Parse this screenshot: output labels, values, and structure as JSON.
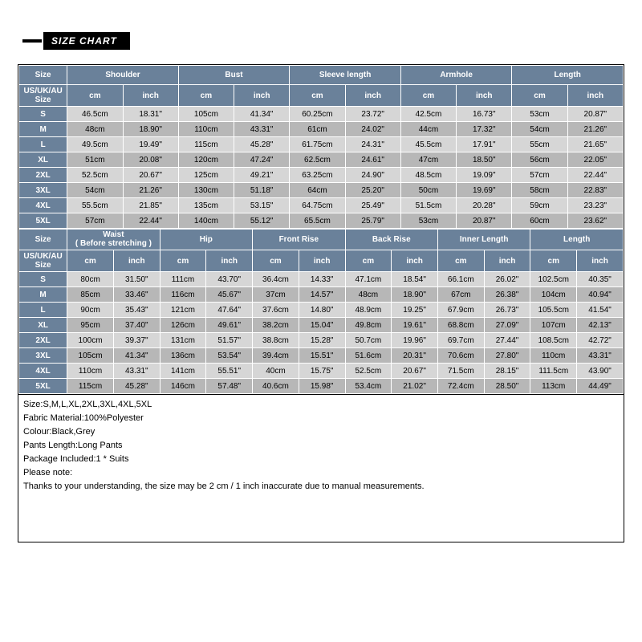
{
  "title": "SIZE CHART",
  "colors": {
    "header_bg": "#6a819a",
    "row_light": "#d6d6d6",
    "row_dark": "#b7b7b7",
    "border": "#ffffff",
    "outer_border": "#000000"
  },
  "table1": {
    "top": [
      "Size",
      "Shoulder",
      "Bust",
      "Sleeve length",
      "Armhole",
      "Length"
    ],
    "sub_label_html": "US/UK/AU<br>Size",
    "units": [
      "cm",
      "inch",
      "cm",
      "inch",
      "cm",
      "inch",
      "cm",
      "inch",
      "cm",
      "inch"
    ],
    "rows": [
      {
        "size": "S",
        "cells": [
          "46.5cm",
          "18.31\"",
          "105cm",
          "41.34\"",
          "60.25cm",
          "23.72\"",
          "42.5cm",
          "16.73\"",
          "53cm",
          "20.87\""
        ]
      },
      {
        "size": "M",
        "cells": [
          "48cm",
          "18.90\"",
          "110cm",
          "43.31\"",
          "61cm",
          "24.02\"",
          "44cm",
          "17.32\"",
          "54cm",
          "21.26\""
        ]
      },
      {
        "size": "L",
        "cells": [
          "49.5cm",
          "19.49\"",
          "115cm",
          "45.28\"",
          "61.75cm",
          "24.31\"",
          "45.5cm",
          "17.91\"",
          "55cm",
          "21.65\""
        ]
      },
      {
        "size": "XL",
        "cells": [
          "51cm",
          "20.08\"",
          "120cm",
          "47.24\"",
          "62.5cm",
          "24.61\"",
          "47cm",
          "18.50\"",
          "56cm",
          "22.05\""
        ]
      },
      {
        "size": "2XL",
        "cells": [
          "52.5cm",
          "20.67\"",
          "125cm",
          "49.21\"",
          "63.25cm",
          "24.90\"",
          "48.5cm",
          "19.09\"",
          "57cm",
          "22.44\""
        ]
      },
      {
        "size": "3XL",
        "cells": [
          "54cm",
          "21.26\"",
          "130cm",
          "51.18\"",
          "64cm",
          "25.20\"",
          "50cm",
          "19.69\"",
          "58cm",
          "22.83\""
        ]
      },
      {
        "size": "4XL",
        "cells": [
          "55.5cm",
          "21.85\"",
          "135cm",
          "53.15\"",
          "64.75cm",
          "25.49\"",
          "51.5cm",
          "20.28\"",
          "59cm",
          "23.23\""
        ]
      },
      {
        "size": "5XL",
        "cells": [
          "57cm",
          "22.44\"",
          "140cm",
          "55.12\"",
          "65.5cm",
          "25.79\"",
          "53cm",
          "20.87\"",
          "60cm",
          "23.62\""
        ]
      }
    ]
  },
  "table2": {
    "top": [
      "Size",
      "Waist\n( Before stretching )",
      "Hip",
      "Front Rise",
      "Back Rise",
      "Inner Length",
      "Length"
    ],
    "top_html": [
      "Size",
      "Waist<br>( Before stretching )",
      "Hip",
      "Front Rise",
      "Back Rise",
      "Inner Length",
      "Length"
    ],
    "sub_label_html": "US/UK/AU<br>Size",
    "units": [
      "cm",
      "inch",
      "cm",
      "inch",
      "cm",
      "inch",
      "cm",
      "inch",
      "cm",
      "inch",
      "cm",
      "inch"
    ],
    "rows": [
      {
        "size": "S",
        "cells": [
          "80cm",
          "31.50\"",
          "111cm",
          "43.70\"",
          "36.4cm",
          "14.33\"",
          "47.1cm",
          "18.54\"",
          "66.1cm",
          "26.02\"",
          "102.5cm",
          "40.35\""
        ]
      },
      {
        "size": "M",
        "cells": [
          "85cm",
          "33.46\"",
          "116cm",
          "45.67\"",
          "37cm",
          "14.57\"",
          "48cm",
          "18.90\"",
          "67cm",
          "26.38\"",
          "104cm",
          "40.94\""
        ]
      },
      {
        "size": "L",
        "cells": [
          "90cm",
          "35.43\"",
          "121cm",
          "47.64\"",
          "37.6cm",
          "14.80\"",
          "48.9cm",
          "19.25\"",
          "67.9cm",
          "26.73\"",
          "105.5cm",
          "41.54\""
        ]
      },
      {
        "size": "XL",
        "cells": [
          "95cm",
          "37.40\"",
          "126cm",
          "49.61\"",
          "38.2cm",
          "15.04\"",
          "49.8cm",
          "19.61\"",
          "68.8cm",
          "27.09\"",
          "107cm",
          "42.13\""
        ]
      },
      {
        "size": "2XL",
        "cells": [
          "100cm",
          "39.37\"",
          "131cm",
          "51.57\"",
          "38.8cm",
          "15.28\"",
          "50.7cm",
          "19.96\"",
          "69.7cm",
          "27.44\"",
          "108.5cm",
          "42.72\""
        ]
      },
      {
        "size": "3XL",
        "cells": [
          "105cm",
          "41.34\"",
          "136cm",
          "53.54\"",
          "39.4cm",
          "15.51\"",
          "51.6cm",
          "20.31\"",
          "70.6cm",
          "27.80\"",
          "110cm",
          "43.31\""
        ]
      },
      {
        "size": "4XL",
        "cells": [
          "110cm",
          "43.31\"",
          "141cm",
          "55.51\"",
          "40cm",
          "15.75\"",
          "52.5cm",
          "20.67\"",
          "71.5cm",
          "28.15\"",
          "111.5cm",
          "43.90\""
        ]
      },
      {
        "size": "5XL",
        "cells": [
          "115cm",
          "45.28\"",
          "146cm",
          "57.48\"",
          "40.6cm",
          "15.98\"",
          "53.4cm",
          "21.02\"",
          "72.4cm",
          "28.50\"",
          "113cm",
          "44.49\""
        ]
      }
    ]
  },
  "notes": [
    "Size:S,M,L,XL,2XL,3XL,4XL,5XL",
    "Fabric Material:100%Polyester",
    "Colour:Black,Grey",
    "Pants Length:Long Pants",
    "Package Included:1 * Suits",
    "Please note:",
    "Thanks to your understanding, the size may be 2 cm / 1 inch inaccurate due to manual measurements."
  ]
}
